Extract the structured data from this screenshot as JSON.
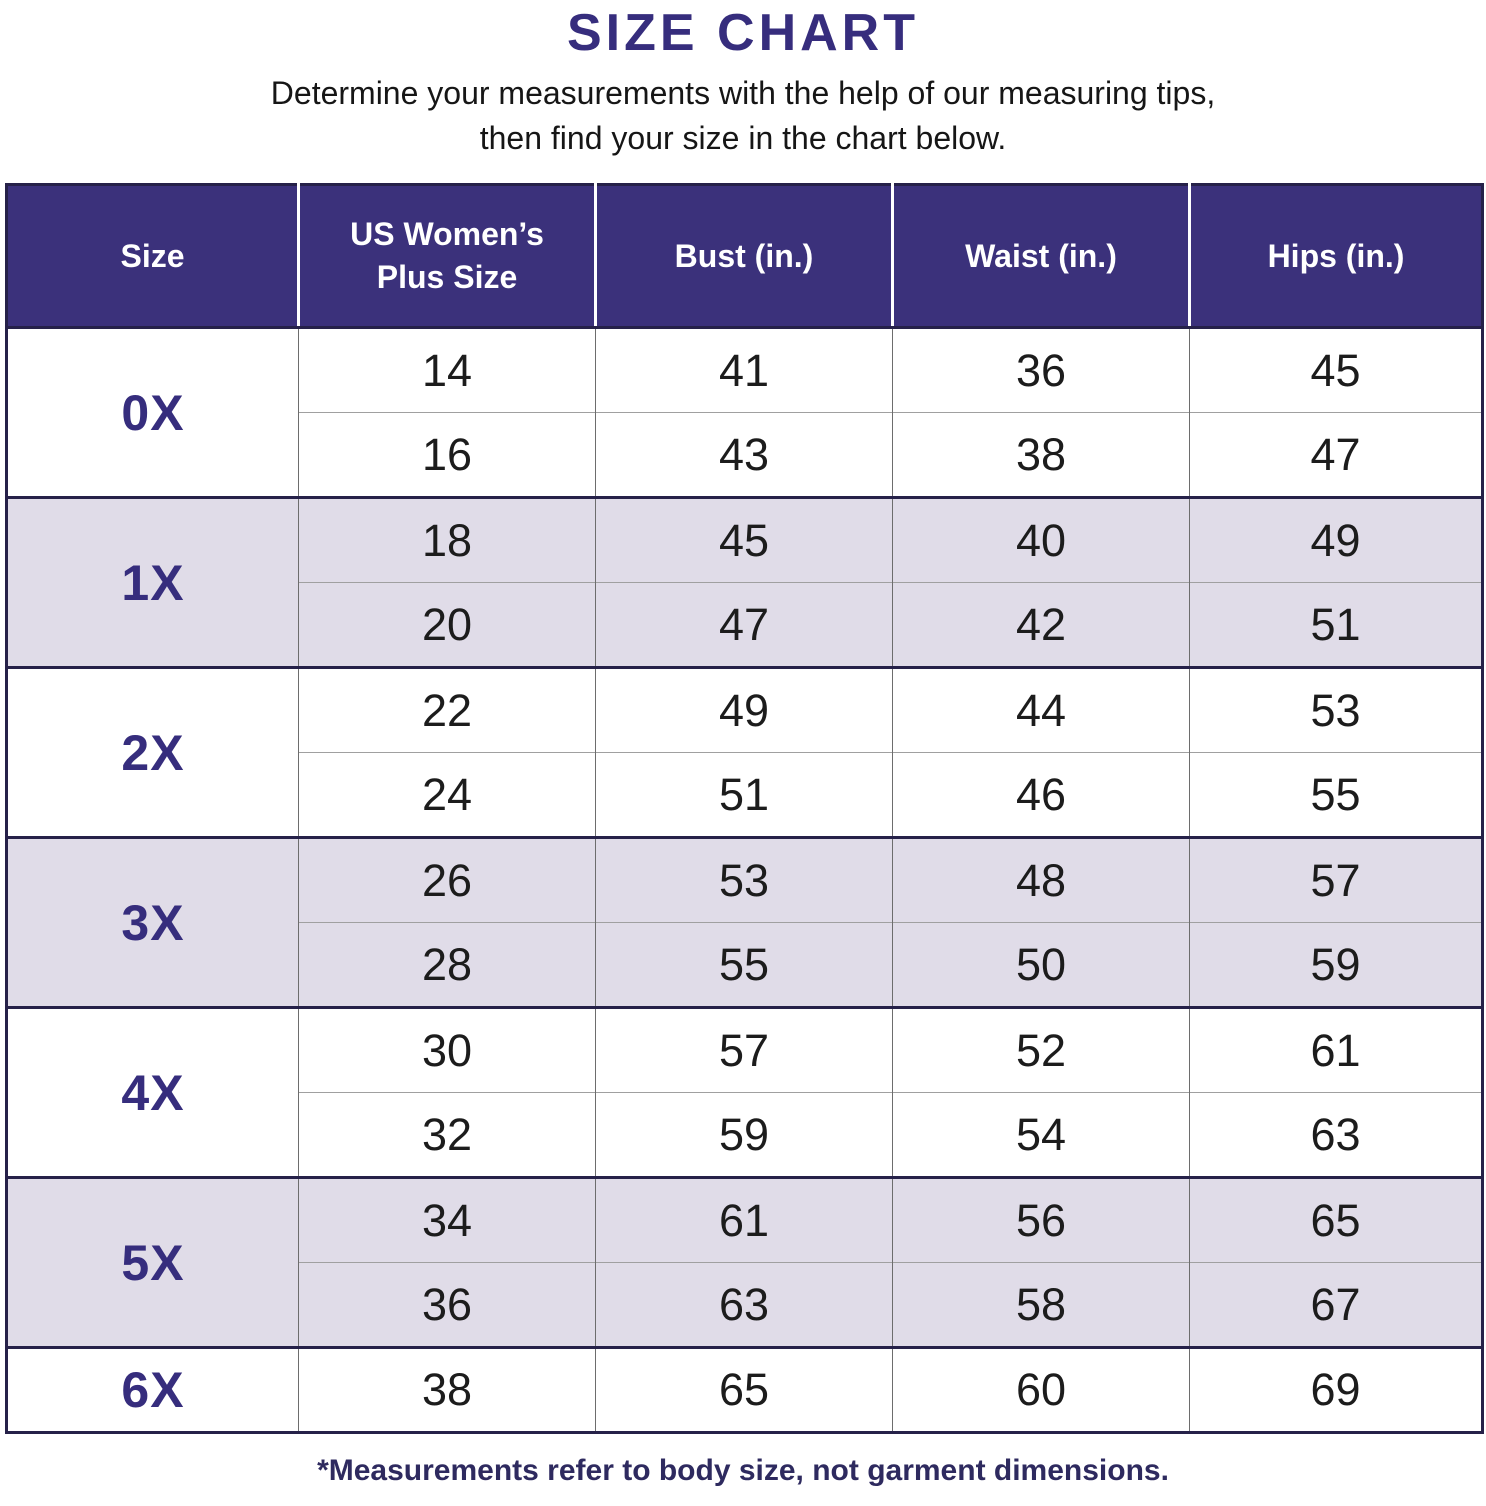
{
  "page": {
    "title": "SIZE CHART",
    "subtitle_line1": "Determine your measurements with the help of our measuring tips,",
    "subtitle_line2": "then find your size in the chart below.",
    "footnote": "*Measurements refer to body size, not garment dimensions."
  },
  "colors": {
    "header_background": "#3b317b",
    "accent_text": "#362d7d",
    "shaded_row_background": "#e0dce8",
    "cell_text": "#1c1c1c"
  },
  "table": {
    "columns": [
      {
        "key": "size",
        "label": "Size"
      },
      {
        "key": "us-plus-size",
        "label": "US Women’s\nPlus Size"
      },
      {
        "key": "bust",
        "label": "Bust (in.)"
      },
      {
        "key": "waist",
        "label": "Waist (in.)"
      },
      {
        "key": "hips",
        "label": "Hips (in.)"
      }
    ],
    "groups": [
      {
        "size": "0X",
        "shaded": false,
        "rows": [
          [
            "14",
            "41",
            "36",
            "45"
          ],
          [
            "16",
            "43",
            "38",
            "47"
          ]
        ]
      },
      {
        "size": "1X",
        "shaded": true,
        "rows": [
          [
            "18",
            "45",
            "40",
            "49"
          ],
          [
            "20",
            "47",
            "42",
            "51"
          ]
        ]
      },
      {
        "size": "2X",
        "shaded": false,
        "rows": [
          [
            "22",
            "49",
            "44",
            "53"
          ],
          [
            "24",
            "51",
            "46",
            "55"
          ]
        ]
      },
      {
        "size": "3X",
        "shaded": true,
        "rows": [
          [
            "26",
            "53",
            "48",
            "57"
          ],
          [
            "28",
            "55",
            "50",
            "59"
          ]
        ]
      },
      {
        "size": "4X",
        "shaded": false,
        "rows": [
          [
            "30",
            "57",
            "52",
            "61"
          ],
          [
            "32",
            "59",
            "54",
            "63"
          ]
        ]
      },
      {
        "size": "5X",
        "shaded": true,
        "rows": [
          [
            "34",
            "61",
            "56",
            "65"
          ],
          [
            "36",
            "63",
            "58",
            "67"
          ]
        ]
      },
      {
        "size": "6X",
        "shaded": false,
        "rows": [
          [
            "38",
            "65",
            "60",
            "69"
          ]
        ]
      }
    ]
  }
}
